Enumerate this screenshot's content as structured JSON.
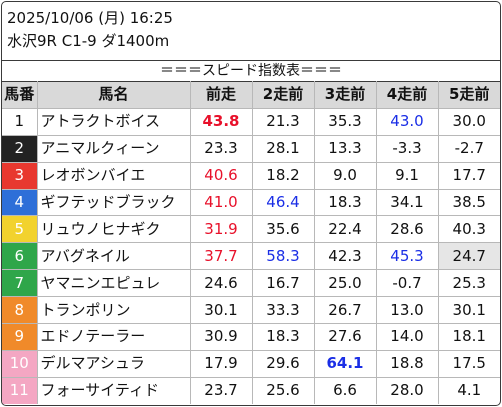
{
  "header": {
    "datetime": "2025/10/06 (月) 16:25",
    "race": "水沢9R C1-9 ダ1400m",
    "subtitle": "＝＝＝スピード指数表＝＝＝"
  },
  "table": {
    "columns": [
      "馬番",
      "馬名",
      "前走",
      "2走前",
      "3走前",
      "4走前",
      "5走前"
    ],
    "gate_colors": {
      "1": {
        "bg": "#ffffff",
        "fg": "#111111"
      },
      "2": {
        "bg": "#222222",
        "fg": "#ffffff"
      },
      "3": {
        "bg": "#e8382f",
        "fg": "#ffffff"
      },
      "4": {
        "bg": "#2e6fd8",
        "fg": "#ffffff"
      },
      "5": {
        "bg": "#f2d22e",
        "fg": "#ffffff"
      },
      "6": {
        "bg": "#2fa64a",
        "fg": "#ffffff"
      },
      "7": {
        "bg": "#f08a2a",
        "fg": "#ffffff"
      },
      "8": {
        "bg": "#f4a7c3",
        "fg": "#ffffff"
      }
    },
    "rows": [
      {
        "no": "1",
        "gate": "1",
        "name": "アトラクトボイス",
        "v": [
          "43.8",
          "21.3",
          "35.3",
          "43.0",
          "30.0"
        ],
        "style": [
          "red bold",
          "",
          "",
          "blue",
          ""
        ]
      },
      {
        "no": "2",
        "gate": "2",
        "name": "アニマルクィーン",
        "v": [
          "23.3",
          "28.1",
          "13.3",
          "-3.3",
          "-2.7"
        ],
        "style": [
          "",
          "",
          "",
          "",
          ""
        ]
      },
      {
        "no": "3",
        "gate": "3",
        "name": "レオボンバイエ",
        "v": [
          "40.6",
          "18.2",
          "9.0",
          "9.1",
          "17.7"
        ],
        "style": [
          "red",
          "",
          "",
          "",
          ""
        ]
      },
      {
        "no": "4",
        "gate": "4",
        "name": "ギフテッドブラック",
        "v": [
          "41.0",
          "46.4",
          "18.3",
          "34.1",
          "38.5"
        ],
        "style": [
          "red",
          "blue",
          "",
          "",
          ""
        ]
      },
      {
        "no": "5",
        "gate": "5",
        "name": "リュウノヒナギク",
        "v": [
          "31.9",
          "35.6",
          "22.4",
          "28.6",
          "40.3"
        ],
        "style": [
          "red",
          "",
          "",
          "",
          ""
        ]
      },
      {
        "no": "6",
        "gate": "6",
        "name": "アバグネイル",
        "v": [
          "37.7",
          "58.3",
          "42.3",
          "45.3",
          "24.7"
        ],
        "style": [
          "red",
          "blue",
          "",
          "blue",
          "gray"
        ]
      },
      {
        "no": "7",
        "gate": "6",
        "name": "ヤマニンエピュレ",
        "v": [
          "24.6",
          "16.7",
          "25.0",
          "-0.7",
          "25.3"
        ],
        "style": [
          "",
          "",
          "",
          "",
          ""
        ]
      },
      {
        "no": "8",
        "gate": "7",
        "name": "トランポリン",
        "v": [
          "30.1",
          "33.3",
          "26.7",
          "13.0",
          "30.1"
        ],
        "style": [
          "",
          "",
          "",
          "",
          ""
        ]
      },
      {
        "no": "9",
        "gate": "7",
        "name": "エドノテーラー",
        "v": [
          "30.9",
          "18.3",
          "27.6",
          "14.0",
          "18.1"
        ],
        "style": [
          "",
          "",
          "",
          "",
          ""
        ]
      },
      {
        "no": "10",
        "gate": "8",
        "name": "デルマアシュラ",
        "v": [
          "17.9",
          "29.6",
          "64.1",
          "18.8",
          "17.5"
        ],
        "style": [
          "",
          "",
          "blue bold",
          "",
          ""
        ]
      },
      {
        "no": "11",
        "gate": "8",
        "name": "フォーサイティド",
        "v": [
          "23.7",
          "25.6",
          "6.6",
          "28.0",
          "4.1"
        ],
        "style": [
          "",
          "",
          "",
          "",
          ""
        ]
      }
    ]
  }
}
